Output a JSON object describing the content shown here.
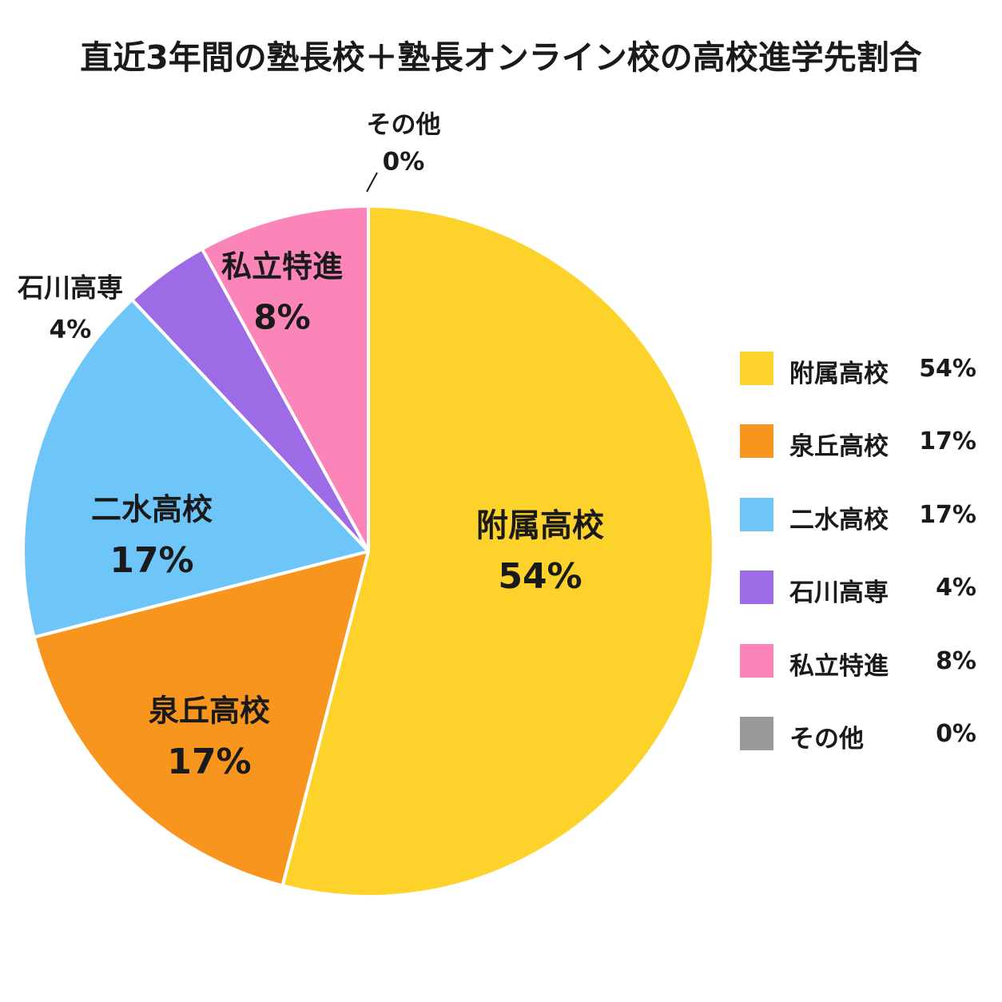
{
  "chart_data": {
    "type": "pie",
    "title": "直近3年間の塾長校＋塾長オンライン校の高校進学先割合",
    "slices": [
      {
        "label": "附属高校",
        "value": 54,
        "value_text": "54%",
        "color": "#FDD22B"
      },
      {
        "label": "泉丘高校",
        "value": 17,
        "value_text": "17%",
        "color": "#F8951E"
      },
      {
        "label": "二水高校",
        "value": 17,
        "value_text": "17%",
        "color": "#6EC6F8"
      },
      {
        "label": "石川高専",
        "value": 4,
        "value_text": "4%",
        "color": "#9E6BE6"
      },
      {
        "label": "私立特進",
        "value": 8,
        "value_text": "8%",
        "color": "#FB84B9"
      },
      {
        "label": "その他",
        "value": 0,
        "value_text": "0%",
        "color": "#999999"
      }
    ],
    "legend_position": "right"
  }
}
